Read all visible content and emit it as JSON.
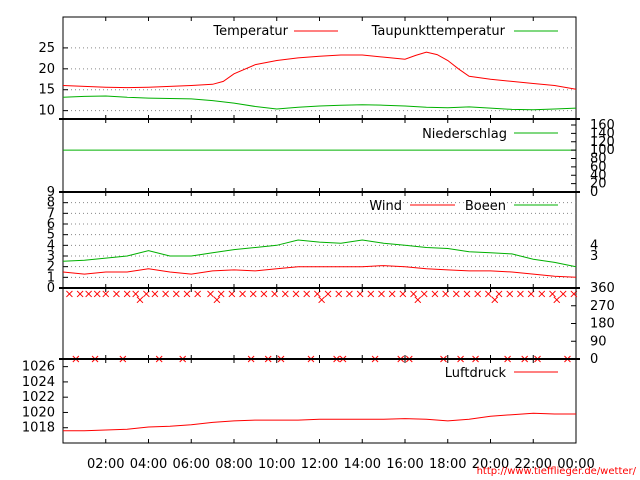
{
  "chart_data": [
    {
      "id": "temperature",
      "type": "line",
      "xlabel": "",
      "ylabel": "",
      "ylim": [
        8,
        30
      ],
      "yticks": [
        10,
        15,
        20,
        25
      ],
      "grid": true,
      "legend_position": "top",
      "series": [
        {
          "name": "Temperatur",
          "color": "#ff0000",
          "x": [
            0,
            1,
            2,
            3,
            4,
            5,
            6,
            7,
            7.5,
            8,
            9,
            10,
            11,
            12,
            13,
            14,
            15,
            16,
            16.5,
            17,
            17.5,
            18,
            18.5,
            19,
            20,
            21,
            22,
            23,
            24
          ],
          "y": [
            16,
            15.8,
            15.6,
            15.5,
            15.6,
            15.8,
            16,
            16.3,
            17,
            18.8,
            21,
            22,
            22.6,
            23,
            23.3,
            23.3,
            22.8,
            22.3,
            23.2,
            24,
            23.4,
            22,
            20,
            18.2,
            17.5,
            17,
            16.5,
            16,
            15.1
          ]
        },
        {
          "name": "Taupunkttemperatur",
          "color": "#00b000",
          "x": [
            0,
            1,
            2,
            3,
            4,
            5,
            6,
            7,
            8,
            9,
            10,
            11,
            12,
            13,
            14,
            15,
            16,
            17,
            18,
            19,
            20,
            21,
            22,
            23,
            24
          ],
          "y": [
            13.2,
            13.4,
            13.5,
            13.2,
            13,
            12.9,
            12.8,
            12.4,
            11.8,
            11,
            10.4,
            10.8,
            11.1,
            11.3,
            11.4,
            11.3,
            11.1,
            10.8,
            10.7,
            10.9,
            10.6,
            10.3,
            10.2,
            10.4,
            10.6
          ]
        }
      ]
    },
    {
      "id": "precipitation",
      "type": "line",
      "xlabel": "",
      "ylabel": "",
      "ylim": [
        0,
        160
      ],
      "yticks": [
        0,
        20,
        40,
        60,
        80,
        100,
        120,
        140,
        160
      ],
      "grid": false,
      "legend_position": "top-right",
      "series": [
        {
          "name": "Niederschlag",
          "color": "#00b000",
          "x": [
            0,
            24
          ],
          "y": [
            100,
            100
          ]
        }
      ]
    },
    {
      "id": "wind",
      "type": "line",
      "xlabel": "",
      "ylabel": "",
      "ylim": [
        0,
        9
      ],
      "yticks": [
        0,
        1,
        2,
        3,
        4,
        5,
        6,
        7,
        8,
        9
      ],
      "right_ticks": [
        3,
        4
      ],
      "grid": true,
      "legend_position": "top-right",
      "series": [
        {
          "name": "Wind",
          "color": "#ff0000",
          "x": [
            0,
            1,
            2,
            3,
            4,
            5,
            6,
            7,
            8,
            9,
            10,
            11,
            12,
            13,
            14,
            15,
            16,
            17,
            18,
            19,
            20,
            21,
            22,
            23,
            24
          ],
          "y": [
            1.5,
            1.3,
            1.5,
            1.5,
            1.8,
            1.5,
            1.3,
            1.6,
            1.7,
            1.6,
            1.8,
            2,
            2,
            2,
            2,
            2.1,
            2,
            1.8,
            1.7,
            1.6,
            1.6,
            1.5,
            1.3,
            1.1,
            1
          ]
        },
        {
          "name": "Boeen",
          "color": "#00b000",
          "x": [
            0,
            1,
            2,
            3,
            4,
            5,
            6,
            7,
            8,
            9,
            10,
            11,
            12,
            13,
            14,
            15,
            16,
            17,
            18,
            19,
            20,
            21,
            22,
            23,
            24
          ],
          "y": [
            2.5,
            2.6,
            2.8,
            3,
            3.5,
            3,
            3,
            3.3,
            3.6,
            3.8,
            4,
            4.5,
            4.3,
            4.2,
            4.5,
            4.2,
            4,
            3.8,
            3.7,
            3.4,
            3.3,
            3.2,
            2.7,
            2.4,
            2
          ]
        }
      ]
    },
    {
      "id": "wind_direction",
      "type": "scatter",
      "xlabel": "",
      "ylabel": "",
      "ylim": [
        0,
        360
      ],
      "yticks": [
        0,
        90,
        180,
        270,
        360
      ],
      "grid": false,
      "series": [
        {
          "name": "",
          "color": "#ff0000",
          "x": [
            0.3,
            0.8,
            1.2,
            1.6,
            2,
            2.5,
            3,
            3.4,
            3.9,
            4.3,
            4.8,
            5.3,
            5.8,
            6.3,
            6.9,
            7.4,
            7.9,
            8.4,
            8.9,
            9.4,
            9.9,
            10.4,
            10.9,
            11.4,
            11.9,
            12.4,
            12.9,
            13.4,
            13.9,
            14.4,
            14.9,
            15.4,
            15.9,
            16.4,
            16.9,
            17.4,
            17.9,
            18.4,
            18.9,
            19.4,
            19.9,
            20.4,
            20.9,
            21.4,
            21.9,
            22.4,
            22.9,
            23.4,
            23.9,
            1.5,
            4.5,
            8.8,
            10.2,
            11.6,
            13.1,
            14.6,
            16.2,
            17.8,
            19.3,
            20.8,
            22.2,
            23.6,
            0.6,
            2.8,
            5.6,
            9.6,
            12.8,
            15.8,
            18.6,
            21.6,
            3.6,
            7.2,
            12.1,
            16.6,
            20.2,
            23.1
          ],
          "y": [
            330,
            330,
            330,
            330,
            330,
            330,
            330,
            330,
            330,
            330,
            330,
            330,
            330,
            330,
            330,
            330,
            330,
            330,
            330,
            330,
            330,
            330,
            330,
            330,
            330,
            330,
            330,
            330,
            330,
            330,
            330,
            330,
            330,
            330,
            330,
            330,
            330,
            330,
            330,
            330,
            330,
            330,
            330,
            330,
            330,
            330,
            330,
            330,
            330,
            0,
            0,
            0,
            0,
            0,
            0,
            0,
            0,
            0,
            0,
            0,
            0,
            0,
            0,
            0,
            0,
            0,
            0,
            0,
            0,
            0,
            300,
            300,
            300,
            300,
            300,
            300
          ]
        }
      ]
    },
    {
      "id": "pressure",
      "type": "line",
      "xlabel": "",
      "ylabel": "",
      "ylim": [
        1016,
        1027
      ],
      "yticks": [
        1018,
        1020,
        1022,
        1024,
        1026
      ],
      "grid": false,
      "legend_position": "top-right",
      "series": [
        {
          "name": "Luftdruck",
          "color": "#ff0000",
          "x": [
            0,
            1,
            2,
            3,
            4,
            5,
            6,
            7,
            8,
            9,
            10,
            11,
            12,
            13,
            14,
            15,
            16,
            17,
            18,
            19,
            20,
            21,
            22,
            23,
            24
          ],
          "y": [
            1017.6,
            1017.6,
            1017.7,
            1017.8,
            1018.1,
            1018.2,
            1018.4,
            1018.7,
            1018.9,
            1019,
            1019,
            1019,
            1019.1,
            1019.1,
            1019.1,
            1019.1,
            1019.2,
            1019.1,
            1018.9,
            1019.1,
            1019.5,
            1019.7,
            1019.9,
            1019.8,
            1019.8
          ]
        }
      ]
    }
  ],
  "x_axis": {
    "range": [
      0,
      24
    ],
    "tick_labels": [
      "02:00",
      "04:00",
      "06:00",
      "08:00",
      "10:00",
      "12:00",
      "14:00",
      "16:00",
      "18:00",
      "20:00",
      "22:00",
      "00:00"
    ],
    "tick_hours": [
      2,
      4,
      6,
      8,
      10,
      12,
      14,
      16,
      18,
      20,
      22,
      24
    ]
  },
  "credit": "http://www.tiefflieger.de/wetter/",
  "colors": {
    "red": "#ff0000",
    "green": "#00b000",
    "grid": "#888888"
  }
}
